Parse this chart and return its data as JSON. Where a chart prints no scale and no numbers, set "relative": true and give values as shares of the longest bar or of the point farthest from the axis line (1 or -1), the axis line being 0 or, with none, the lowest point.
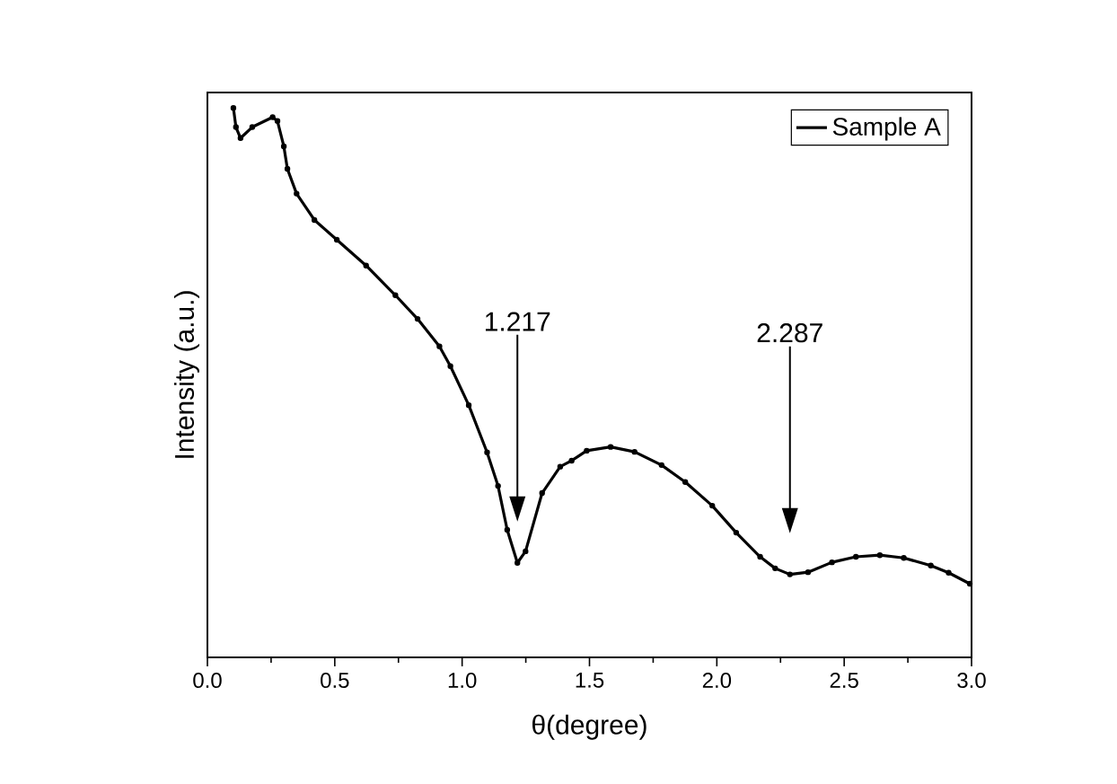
{
  "chart_data": {
    "type": "line",
    "xlabel": "θ(degree)",
    "ylabel": "Intensity (a.u.)",
    "relative": true,
    "xlim": [
      0,
      3
    ],
    "xticks": [
      {
        "value": 0,
        "label": "0.0"
      },
      {
        "value": 0.5,
        "label": "0.5"
      },
      {
        "value": 1,
        "label": "1.0"
      },
      {
        "value": 1.5,
        "label": "1.5"
      },
      {
        "value": 2,
        "label": "2.0"
      },
      {
        "value": 2.5,
        "label": "2.5"
      },
      {
        "value": 3,
        "label": "3.0"
      }
    ],
    "legend": "top right",
    "marker": "circle",
    "line_style": "solid",
    "series": [
      {
        "name": "Sample A",
        "color": "#000000",
        "x": [
          0.102,
          0.112,
          0.13,
          0.176,
          0.256,
          0.275,
          0.3,
          0.314,
          0.35,
          0.42,
          0.508,
          0.623,
          0.738,
          0.825,
          0.911,
          0.954,
          1.026,
          1.098,
          1.141,
          1.177,
          1.217,
          1.249,
          1.314,
          1.385,
          1.43,
          1.489,
          1.583,
          1.677,
          1.783,
          1.876,
          1.982,
          2.076,
          2.17,
          2.229,
          2.287,
          2.358,
          2.452,
          2.546,
          2.64,
          2.734,
          2.84,
          2.91,
          2.993
        ],
        "values": [
          1.0,
          0.965,
          0.945,
          0.965,
          0.983,
          0.976,
          0.93,
          0.889,
          0.844,
          0.796,
          0.76,
          0.713,
          0.659,
          0.616,
          0.566,
          0.53,
          0.459,
          0.373,
          0.312,
          0.232,
          0.172,
          0.193,
          0.299,
          0.347,
          0.358,
          0.376,
          0.383,
          0.374,
          0.35,
          0.319,
          0.276,
          0.227,
          0.183,
          0.162,
          0.151,
          0.155,
          0.173,
          0.183,
          0.186,
          0.181,
          0.167,
          0.154,
          0.134
        ]
      }
    ],
    "annotations": [
      "1.217",
      "2.287"
    ]
  }
}
